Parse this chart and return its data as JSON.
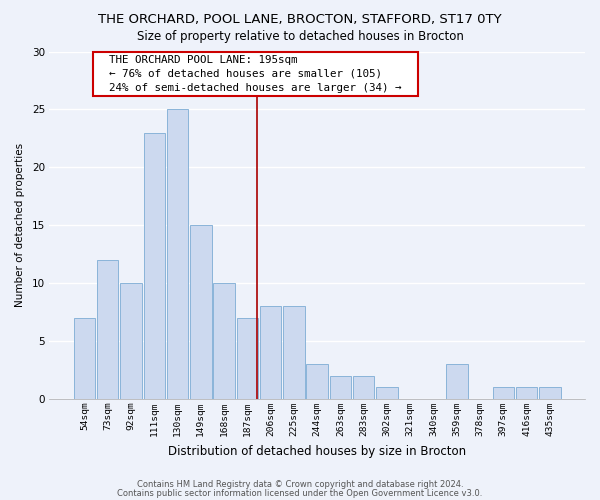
{
  "title1": "THE ORCHARD, POOL LANE, BROCTON, STAFFORD, ST17 0TY",
  "title2": "Size of property relative to detached houses in Brocton",
  "xlabel": "Distribution of detached houses by size in Brocton",
  "ylabel": "Number of detached properties",
  "bar_labels": [
    "54sqm",
    "73sqm",
    "92sqm",
    "111sqm",
    "130sqm",
    "149sqm",
    "168sqm",
    "187sqm",
    "206sqm",
    "225sqm",
    "244sqm",
    "263sqm",
    "283sqm",
    "302sqm",
    "321sqm",
    "340sqm",
    "359sqm",
    "378sqm",
    "397sqm",
    "416sqm",
    "435sqm"
  ],
  "bar_values": [
    7,
    12,
    10,
    23,
    25,
    15,
    10,
    7,
    8,
    8,
    3,
    2,
    2,
    1,
    0,
    0,
    3,
    0,
    1,
    1,
    1
  ],
  "bar_color": "#ccd9ef",
  "bar_edge_color": "#8ab4d9",
  "ylim": [
    0,
    30
  ],
  "yticks": [
    0,
    5,
    10,
    15,
    20,
    25,
    30
  ],
  "vline_x": 7.42,
  "vline_color": "#aa0000",
  "annotation_title": "THE ORCHARD POOL LANE: 195sqm",
  "annotation_line1": "← 76% of detached houses are smaller (105)",
  "annotation_line2": "24% of semi-detached houses are larger (34) →",
  "annotation_box_color": "#ffffff",
  "annotation_box_edge": "#cc0000",
  "footer1": "Contains HM Land Registry data © Crown copyright and database right 2024.",
  "footer2": "Contains public sector information licensed under the Open Government Licence v3.0.",
  "bg_color": "#eef2fa",
  "grid_color": "#d8e2f0"
}
